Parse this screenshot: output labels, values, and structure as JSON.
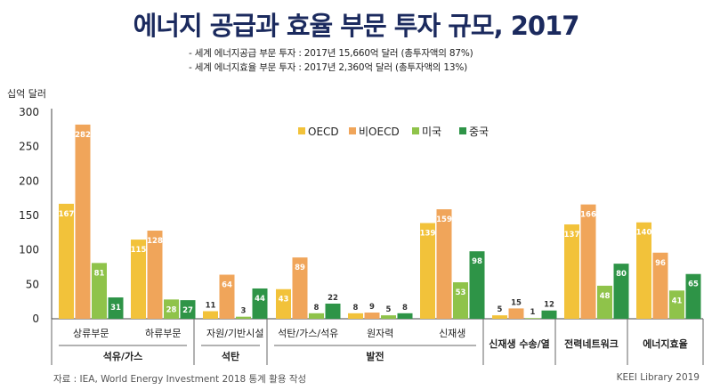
{
  "chart_data": {
    "type": "bar",
    "title": "에너지 공급과 효율 부문 투자 규모, 2017",
    "subtitle": [
      "- 세계 에너지공급 부문 투자 : 2017년 15,660억 달러 (총투자액의 87%)",
      "- 세계 에너지효율 부문 투자 : 2017년 2,360억 달러 (총투자액의 13%)"
    ],
    "ylabel": "십억 달러",
    "ylim": [
      0,
      300
    ],
    "yticks": [
      0,
      50,
      100,
      150,
      200,
      250,
      300
    ],
    "categories": [
      "상류부문",
      "하류부문",
      "자원/기반시설",
      "석탄/가스/석유",
      "원자력",
      "신재생",
      "신재생 수송/열",
      "전력네트워크",
      "에너지효율"
    ],
    "groups": [
      {
        "label": "석유/가스",
        "categories": [
          0,
          1
        ]
      },
      {
        "label": "석탄",
        "categories": [
          2
        ]
      },
      {
        "label": "발전",
        "categories": [
          3,
          4,
          5
        ]
      },
      {
        "label": "신재생 수송/열",
        "categories": [
          6
        ]
      },
      {
        "label": "전력네트워크",
        "categories": [
          7
        ]
      },
      {
        "label": "에너지효율",
        "categories": [
          8
        ]
      }
    ],
    "series": [
      {
        "name": "OECD",
        "color": "#f2c23a",
        "values": [
          167,
          115,
          11,
          43,
          8,
          139,
          5,
          137,
          140
        ]
      },
      {
        "name": "비OECD",
        "color": "#f0a55a",
        "values": [
          282,
          128,
          64,
          89,
          9,
          159,
          15,
          166,
          96
        ]
      },
      {
        "name": "미국",
        "color": "#8fc34a",
        "values": [
          81,
          28,
          3,
          8,
          5,
          53,
          1,
          48,
          41
        ]
      },
      {
        "name": "중국",
        "color": "#2e9447",
        "values": [
          31,
          27,
          44,
          22,
          8,
          98,
          12,
          80,
          65
        ]
      }
    ],
    "legend_position": "top-center",
    "label_colors": {
      "OECD": "#ffffff",
      "비OECD": "#ffffff",
      "미국": "#ffffff",
      "중국": "#ffffff"
    }
  },
  "footer": {
    "source": "자료 : IEA, World Energy Investment 2018 통계 활용 작성",
    "credit": "KEEI Library 2019"
  }
}
